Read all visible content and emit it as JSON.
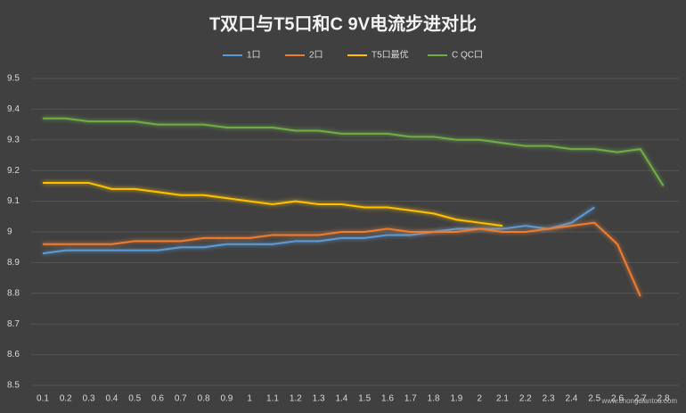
{
  "chart_data": {
    "type": "line",
    "title": "T双口与T5口和C 9V电流步进对比",
    "categories": [
      "0.1",
      "0.2",
      "0.3",
      "0.4",
      "0.5",
      "0.6",
      "0.7",
      "0.8",
      "0.9",
      "1",
      "1.1",
      "1.2",
      "1.3",
      "1.4",
      "1.5",
      "1.6",
      "1.7",
      "1.8",
      "1.9",
      "2",
      "2.1",
      "2.2",
      "2.3",
      "2.4",
      "2.5",
      "2.6",
      "2.7",
      "2.8"
    ],
    "series": [
      {
        "name": "1口",
        "color": "#5b9bd5",
        "values": [
          8.93,
          8.94,
          8.94,
          8.94,
          8.94,
          8.94,
          8.95,
          8.95,
          8.96,
          8.96,
          8.96,
          8.97,
          8.97,
          8.98,
          8.98,
          8.99,
          8.99,
          9.0,
          9.01,
          9.01,
          9.01,
          9.02,
          9.01,
          9.03,
          9.08,
          null,
          null,
          null
        ]
      },
      {
        "name": "2口",
        "color": "#ed7d31",
        "values": [
          8.96,
          8.96,
          8.96,
          8.96,
          8.97,
          8.97,
          8.97,
          8.98,
          8.98,
          8.98,
          8.99,
          8.99,
          8.99,
          9.0,
          9.0,
          9.01,
          9.0,
          9.0,
          9.0,
          9.01,
          9.0,
          9.0,
          9.01,
          9.02,
          9.03,
          8.96,
          8.79,
          null
        ]
      },
      {
        "name": "T5口最优",
        "color": "#ffc000",
        "values": [
          9.16,
          9.16,
          9.16,
          9.14,
          9.14,
          9.13,
          9.12,
          9.12,
          9.11,
          9.1,
          9.09,
          9.1,
          9.09,
          9.09,
          9.08,
          9.08,
          9.07,
          9.06,
          9.04,
          9.03,
          9.02,
          null,
          null,
          null,
          null,
          null,
          null,
          null
        ]
      },
      {
        "name": "C QC口",
        "color": "#70ad47",
        "values": [
          9.37,
          9.37,
          9.36,
          9.36,
          9.36,
          9.35,
          9.35,
          9.35,
          9.34,
          9.34,
          9.34,
          9.33,
          9.33,
          9.32,
          9.32,
          9.32,
          9.31,
          9.31,
          9.3,
          9.3,
          9.29,
          9.28,
          9.28,
          9.27,
          9.27,
          9.26,
          9.27,
          9.15
        ]
      }
    ],
    "ylim": [
      8.5,
      9.5
    ],
    "yticks": [
      8.5,
      8.6,
      8.7,
      8.8,
      8.9,
      9,
      9.1,
      9.2,
      9.3,
      9.4,
      9.5
    ],
    "grid": true,
    "legend": "top",
    "watermark": "www.chongdiantou.com"
  }
}
